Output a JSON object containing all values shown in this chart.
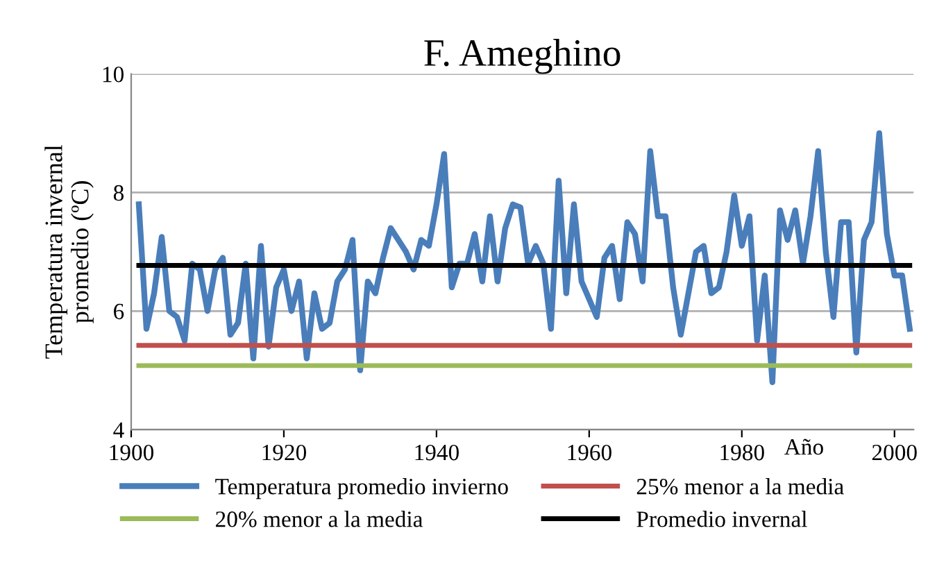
{
  "chart_data": {
    "type": "line",
    "title": "F. Ameghino",
    "xlabel": "Año",
    "ylabel": "Temperatura invernal\npromedio (ºC)",
    "xlim": [
      1900,
      2002.5
    ],
    "xticks": [
      1900,
      1920,
      1940,
      1960,
      1980,
      2000
    ],
    "ylim": [
      4,
      10
    ],
    "yticks": [
      4,
      6,
      8,
      10
    ],
    "grid": "y",
    "legend": "bottom",
    "marker": "none",
    "line_style": "solid",
    "series": [
      {
        "name": "Temperatura promedio invierno",
        "color": "#4a7ebb",
        "x": [
          1901,
          1902,
          1903,
          1904,
          1905,
          1906,
          1907,
          1908,
          1909,
          1910,
          1911,
          1912,
          1913,
          1914,
          1915,
          1916,
          1917,
          1918,
          1919,
          1920,
          1921,
          1922,
          1923,
          1924,
          1925,
          1926,
          1927,
          1928,
          1929,
          1930,
          1931,
          1932,
          1933,
          1934,
          1935,
          1936,
          1937,
          1938,
          1939,
          1940,
          1941,
          1942,
          1943,
          1944,
          1945,
          1946,
          1947,
          1948,
          1949,
          1950,
          1951,
          1952,
          1953,
          1954,
          1955,
          1956,
          1957,
          1958,
          1959,
          1960,
          1961,
          1962,
          1963,
          1964,
          1965,
          1966,
          1967,
          1968,
          1969,
          1970,
          1971,
          1972,
          1973,
          1974,
          1975,
          1976,
          1977,
          1978,
          1979,
          1980,
          1981,
          1982,
          1983,
          1984,
          1985,
          1986,
          1987,
          1988,
          1989,
          1990,
          1991,
          1992,
          1993,
          1994,
          1995,
          1996,
          1997,
          1998,
          1999,
          2000,
          2001,
          2002
        ],
        "values": [
          7.8,
          5.7,
          6.3,
          7.25,
          6.0,
          5.9,
          5.5,
          6.8,
          6.7,
          6.0,
          6.7,
          6.9,
          5.6,
          5.8,
          6.8,
          5.2,
          7.1,
          5.4,
          6.4,
          6.7,
          6.0,
          6.5,
          5.2,
          6.3,
          5.7,
          5.8,
          6.5,
          6.7,
          7.2,
          5.0,
          6.5,
          6.3,
          6.9,
          7.4,
          7.2,
          7.0,
          6.7,
          7.2,
          7.1,
          7.8,
          8.65,
          6.4,
          6.8,
          6.8,
          7.3,
          6.5,
          7.6,
          6.5,
          7.4,
          7.8,
          7.75,
          6.8,
          7.1,
          6.8,
          5.7,
          8.2,
          6.3,
          7.8,
          6.5,
          6.2,
          5.9,
          6.9,
          7.1,
          6.2,
          7.5,
          7.3,
          6.5,
          8.7,
          7.6,
          7.6,
          6.4,
          5.6,
          6.3,
          7.0,
          7.1,
          6.3,
          6.4,
          7.0,
          7.95,
          7.1,
          7.6,
          5.5,
          6.6,
          4.8,
          7.7,
          7.2,
          7.7,
          6.8,
          7.6,
          8.7,
          7.0,
          5.9,
          7.5,
          7.5,
          5.3,
          7.2,
          7.5,
          9.0,
          7.3,
          6.6,
          6.6,
          5.7
        ]
      },
      {
        "name": "25% menor a la media",
        "color": "#c0504d",
        "x": [
          1901,
          2002
        ],
        "values": [
          5.42,
          5.42
        ]
      },
      {
        "name": "20% menor a la media",
        "color": "#9bbb59",
        "x": [
          1901,
          2002
        ],
        "values": [
          5.08,
          5.08
        ]
      },
      {
        "name": "Promedio invernal",
        "color": "#000000",
        "x": [
          1901,
          2002
        ],
        "values": [
          6.77,
          6.77
        ]
      }
    ]
  }
}
